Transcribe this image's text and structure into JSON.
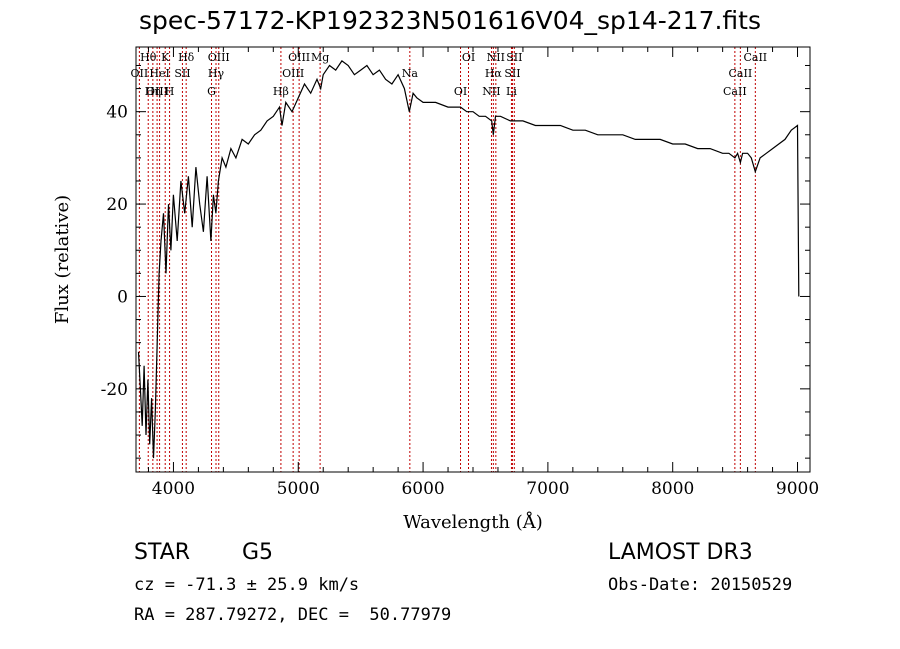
{
  "chart_data": {
    "type": "line",
    "title": "spec-57172-KP192323N501616V04_sp14-217.fits",
    "xlabel": "Wavelength (Å)",
    "ylabel": "Flux (relative)",
    "xlim": [
      3700,
      9100
    ],
    "ylim": [
      -38,
      54
    ],
    "x_ticks": [
      4000,
      5000,
      6000,
      7000,
      8000,
      9000
    ],
    "y_ticks": [
      -20,
      0,
      20,
      40
    ],
    "series": [
      {
        "name": "flux",
        "x": [
          3720,
          3735,
          3750,
          3765,
          3780,
          3795,
          3810,
          3825,
          3840,
          3855,
          3870,
          3885,
          3900,
          3920,
          3940,
          3960,
          3980,
          4000,
          4030,
          4060,
          4090,
          4120,
          4150,
          4180,
          4210,
          4240,
          4270,
          4300,
          4320,
          4340,
          4360,
          4390,
          4420,
          4460,
          4500,
          4550,
          4600,
          4650,
          4700,
          4750,
          4800,
          4850,
          4870,
          4900,
          4950,
          5000,
          5050,
          5100,
          5150,
          5180,
          5200,
          5250,
          5300,
          5350,
          5400,
          5450,
          5500,
          5550,
          5600,
          5650,
          5700,
          5750,
          5800,
          5850,
          5890,
          5920,
          5950,
          6000,
          6100,
          6200,
          6300,
          6350,
          6400,
          6450,
          6500,
          6550,
          6563,
          6580,
          6620,
          6700,
          6800,
          6900,
          7000,
          7100,
          7200,
          7300,
          7400,
          7500,
          7600,
          7700,
          7800,
          7900,
          8000,
          8100,
          8200,
          8300,
          8400,
          8450,
          8498,
          8520,
          8542,
          8560,
          8600,
          8630,
          8662,
          8700,
          8750,
          8800,
          8850,
          8900,
          8950,
          9000,
          9010
        ],
        "y": [
          -12,
          -20,
          -28,
          -15,
          -30,
          -18,
          -32,
          -22,
          -35,
          -25,
          -10,
          5,
          12,
          18,
          5,
          20,
          10,
          22,
          12,
          25,
          18,
          26,
          15,
          28,
          20,
          14,
          26,
          12,
          22,
          18,
          25,
          30,
          28,
          32,
          30,
          34,
          33,
          35,
          36,
          38,
          39,
          41,
          37,
          42,
          40,
          43,
          46,
          44,
          47,
          45,
          48,
          50,
          49,
          51,
          50,
          48,
          49,
          50,
          48,
          49,
          47,
          46,
          48,
          45,
          40,
          44,
          43,
          42,
          42,
          41,
          41,
          40,
          40,
          39,
          39,
          38,
          35,
          39,
          39,
          38,
          38,
          37,
          37,
          37,
          36,
          36,
          35,
          35,
          35,
          34,
          34,
          34,
          33,
          33,
          32,
          32,
          31,
          31,
          30,
          31,
          29,
          31,
          31,
          30,
          27,
          30,
          31,
          32,
          33,
          34,
          36,
          37,
          0
        ]
      }
    ],
    "lines": [
      {
        "label": "Hθ",
        "wave": 3798
      },
      {
        "label": "OII",
        "wave": 3727
      },
      {
        "label": "OIII",
        "wave": 3869
      },
      {
        "label": "K",
        "wave": 3934
      },
      {
        "label": "HeI",
        "wave": 3889
      },
      {
        "label": "Hη",
        "wave": 3835
      },
      {
        "label": "Hδ",
        "wave": 4102
      },
      {
        "label": "SII",
        "wave": 4072
      },
      {
        "label": "H",
        "wave": 3969
      },
      {
        "label": "OIII",
        "wave": 4363
      },
      {
        "label": "Hγ",
        "wave": 4341
      },
      {
        "label": "G",
        "wave": 4305
      },
      {
        "label": "OIII",
        "wave": 5007
      },
      {
        "label": "OIII",
        "wave": 4959
      },
      {
        "label": "Hβ",
        "wave": 4861
      },
      {
        "label": "Mg",
        "wave": 5175
      },
      {
        "label": "Na",
        "wave": 5894
      },
      {
        "label": "OI",
        "wave": 6300
      },
      {
        "label": "OI",
        "wave": 6364
      },
      {
        "label": "Hα",
        "wave": 6563
      },
      {
        "label": "NII",
        "wave": 6548
      },
      {
        "label": "NII",
        "wave": 6583
      },
      {
        "label": "SII",
        "wave": 6716
      },
      {
        "label": "Li",
        "wave": 6708
      },
      {
        "label": "SII",
        "wave": 6731
      },
      {
        "label": "CaII",
        "wave": 8542
      },
      {
        "label": "CaII",
        "wave": 8498
      },
      {
        "label": "CaII",
        "wave": 8662
      }
    ]
  },
  "info": {
    "class": "STAR",
    "subclass": "G5",
    "survey": "LAMOST DR3",
    "cz": "cz = -71.3 ± 25.9 km/s",
    "obs_date": "Obs-Date: 20150529",
    "coords": "RA = 287.79272, DEC =  50.77979"
  },
  "colors": {
    "line_marker": "#c00000",
    "spectrum": "#000000"
  }
}
